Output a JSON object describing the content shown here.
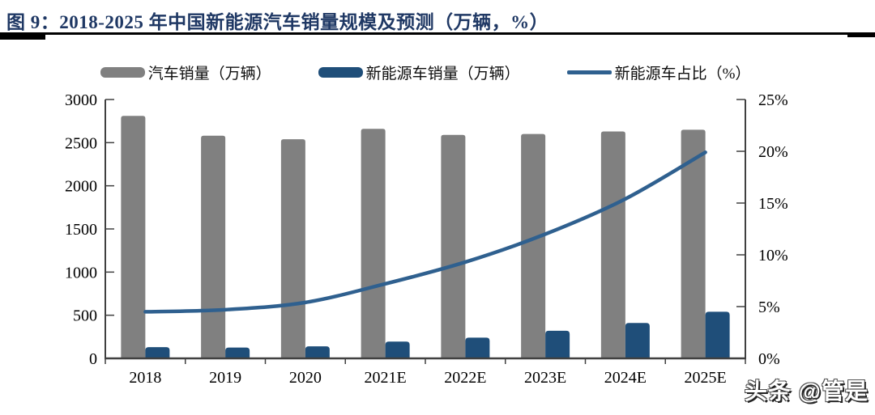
{
  "header": {
    "title": "图 9：2018-2025 年中国新能源汽车销量规模及预测（万辆，%）"
  },
  "watermark": {
    "text": "头条 @管是"
  },
  "colors": {
    "title": "#1F3864",
    "auto_bar": "#808080",
    "nev_bar": "#1F4E79",
    "share_line": "#2F608F",
    "axis": "#404040",
    "tick_text": "#000000"
  },
  "chart_data": {
    "type": "combo-bar-line",
    "title": "2018-2025 年中国新能源汽车销量规模及预测（万辆，%）",
    "categories": [
      "2018",
      "2019",
      "2020",
      "2021E",
      "2022E",
      "2023E",
      "2024E",
      "2025E"
    ],
    "series": [
      {
        "name": "汽车销量（万辆）",
        "type": "bar",
        "axis": "left",
        "values": [
          2810,
          2580,
          2540,
          2660,
          2590,
          2600,
          2630,
          2650
        ]
      },
      {
        "name": "新能源车销量（万辆）",
        "type": "bar",
        "axis": "left",
        "values": [
          130,
          125,
          140,
          195,
          240,
          320,
          410,
          540
        ]
      },
      {
        "name": "新能源车占比（%）",
        "type": "line",
        "axis": "right",
        "values": [
          4.5,
          4.7,
          5.4,
          7.2,
          9.3,
          12.0,
          15.4,
          19.9
        ]
      }
    ],
    "left_axis": {
      "min": 0,
      "max": 3000,
      "step": 500,
      "ticks": [
        "0",
        "500",
        "1000",
        "1500",
        "2000",
        "2500",
        "3000"
      ]
    },
    "right_axis": {
      "min": 0,
      "max": 25,
      "step": 5,
      "ticks": [
        "0%",
        "5%",
        "10%",
        "15%",
        "20%",
        "25%"
      ]
    },
    "legend_position": "top",
    "grid": false
  }
}
